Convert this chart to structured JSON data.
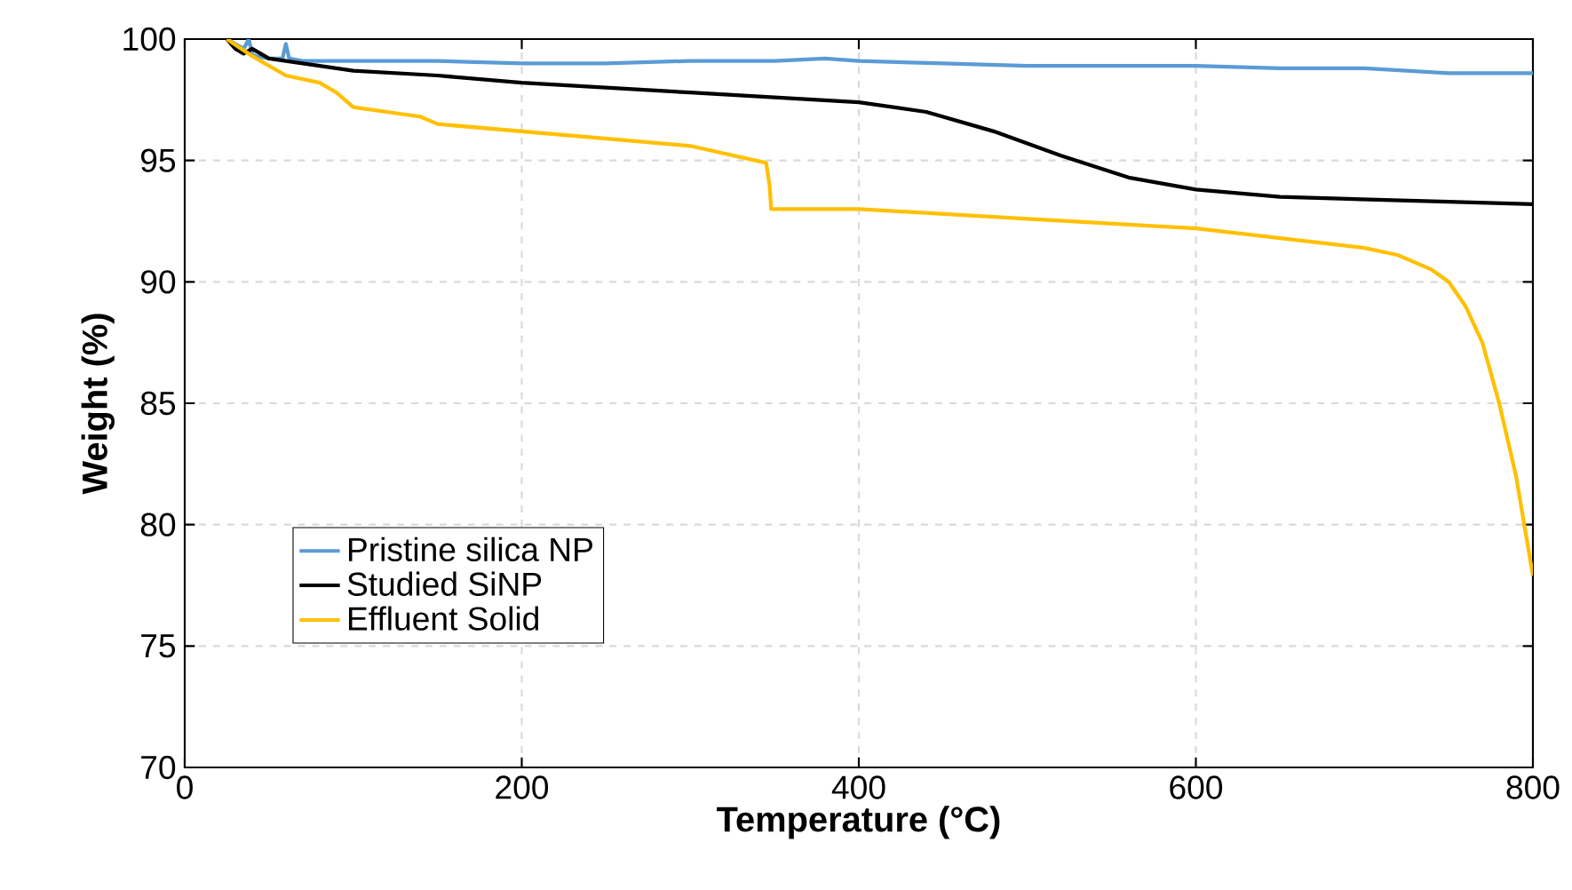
{
  "chart_data": {
    "type": "line",
    "xlabel": "Temperature (°C)",
    "ylabel": "Weight (%)",
    "xlim": [
      0,
      800
    ],
    "xticks": [
      0,
      200,
      400,
      600,
      800
    ],
    "ylim": [
      70,
      100
    ],
    "yticks": [
      70,
      75,
      80,
      85,
      90,
      95,
      100
    ],
    "grid": true,
    "legend": "bottom left",
    "marker": "none",
    "line_style": "solid",
    "series": [
      {
        "name": "Pristine silica NP",
        "color": "#5b9bd5",
        "x": [
          25,
          35,
          38,
          40,
          42,
          50,
          58,
          60,
          62,
          70,
          100,
          150,
          200,
          250,
          300,
          350,
          380,
          400,
          450,
          500,
          550,
          600,
          650,
          700,
          750,
          800
        ],
        "values": [
          100,
          99.6,
          100,
          99.4,
          99.3,
          99.2,
          99.2,
          99.8,
          99.2,
          99.1,
          99.1,
          99.1,
          99.0,
          99.0,
          99.1,
          99.1,
          99.2,
          99.1,
          99.0,
          98.9,
          98.9,
          98.9,
          98.8,
          98.8,
          98.6,
          98.6
        ]
      },
      {
        "name": "Studied SiNP",
        "color": "#000000",
        "x": [
          25,
          30,
          35,
          40,
          50,
          100,
          150,
          200,
          250,
          300,
          350,
          400,
          440,
          470,
          480,
          500,
          520,
          560,
          600,
          650,
          700,
          750,
          800
        ],
        "values": [
          100,
          99.6,
          99.4,
          99.6,
          99.2,
          98.7,
          98.5,
          98.2,
          98.0,
          97.8,
          97.6,
          97.4,
          97.0,
          96.4,
          96.2,
          95.7,
          95.2,
          94.3,
          93.8,
          93.5,
          93.4,
          93.3,
          93.2
        ]
      },
      {
        "name": "Effluent Solid",
        "color": "#ffc000",
        "x": [
          25,
          40,
          60,
          80,
          90,
          100,
          130,
          140,
          150,
          200,
          250,
          300,
          345,
          347,
          348,
          400,
          500,
          600,
          650,
          700,
          720,
          740,
          750,
          760,
          770,
          780,
          790,
          800
        ],
        "values": [
          100,
          99.3,
          98.5,
          98.2,
          97.8,
          97.2,
          96.9,
          96.8,
          96.5,
          96.2,
          95.9,
          95.6,
          94.9,
          94.0,
          93.0,
          93.0,
          92.6,
          92.2,
          91.8,
          91.4,
          91.1,
          90.5,
          90.0,
          89.0,
          87.5,
          85.0,
          82.0,
          77.9
        ]
      }
    ]
  }
}
